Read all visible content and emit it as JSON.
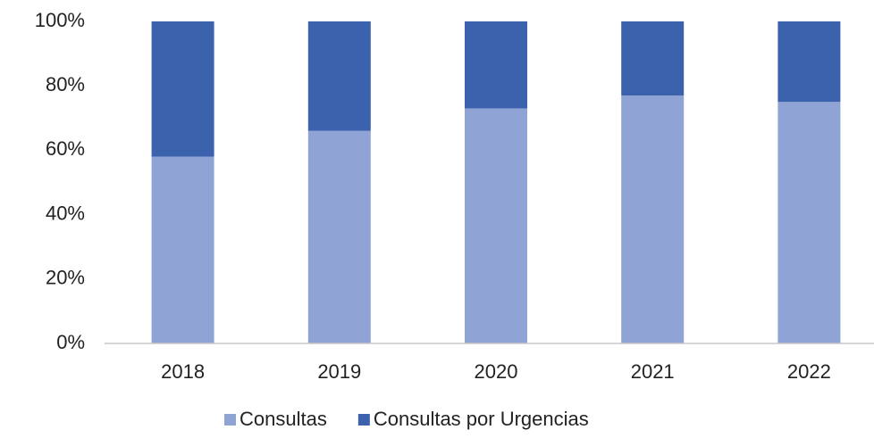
{
  "chart_data": {
    "type": "stacked_bar",
    "categories": [
      "2018",
      "2019",
      "2020",
      "2021",
      "2022"
    ],
    "series": [
      {
        "name": "Consultas",
        "color": "#8fa3d4",
        "values": [
          58,
          66,
          73,
          77,
          75
        ]
      },
      {
        "name": "Consultas por Urgencias",
        "color": "#3c62ae",
        "values": [
          42,
          34,
          27,
          23,
          25
        ]
      }
    ],
    "ylim": [
      0,
      100
    ],
    "yticks": [
      {
        "value": 0,
        "label": "0%"
      },
      {
        "value": 20,
        "label": "20%"
      },
      {
        "value": 40,
        "label": "40%"
      },
      {
        "value": 60,
        "label": "60%"
      },
      {
        "value": 80,
        "label": "80%"
      },
      {
        "value": 100,
        "label": "100%"
      }
    ],
    "grid": false,
    "legend": "bottom"
  }
}
